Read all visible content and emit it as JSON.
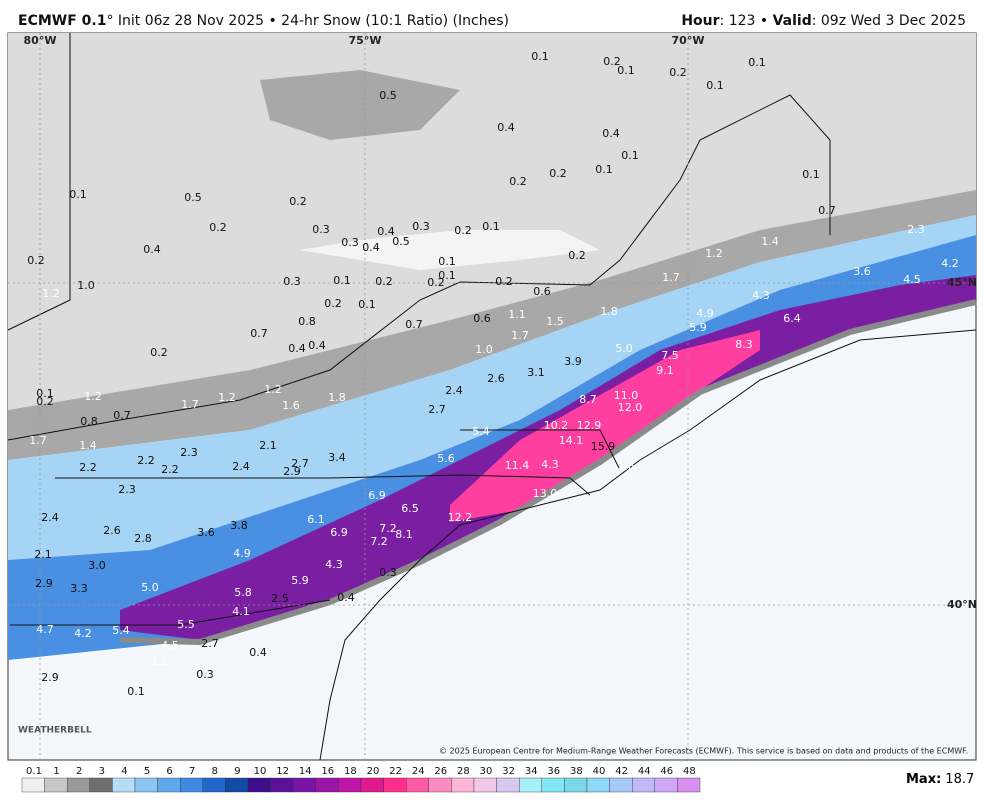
{
  "header": {
    "title_bold": "ECMWF 0.1",
    "title_rest": "° Init 06z 28 Nov 2025 • 24-hr Snow (10:1 Ratio) (Inches)",
    "hour_key": "Hour",
    "hour_val": ": 123 • ",
    "valid_key": "Valid",
    "valid_val": ": 09z Wed 3 Dec 2025"
  },
  "map": {
    "coords": [
      "80°W",
      "75°W",
      "70°W",
      "45°N",
      "40°N"
    ],
    "labels": [
      "0.1",
      "0.2",
      "0.1",
      "0.2",
      "0.1",
      "0.1",
      "0.5",
      "0.4",
      "0.4",
      "0.1",
      "0.1",
      "0.2",
      "0.2",
      "0.1",
      "0.7",
      "0.1",
      "0.5",
      "0.2",
      "0.2",
      "0.3",
      "0.3",
      "0.4",
      "0.2",
      "0.1",
      "0.3",
      "0.4",
      "0.5",
      "0.4",
      "0.2",
      "0.1",
      "0.2",
      "1.2",
      "1.4",
      "2.3",
      "1.7",
      "1.0",
      "1.2",
      "0.3",
      "0.1",
      "0.2",
      "0.2",
      "0.1",
      "0.2",
      "0.6",
      "0.2",
      "0.1",
      "1.1",
      "1.5",
      "1.8",
      "4.3",
      "3.6",
      "4.5",
      "4.2",
      "0.6",
      "0.7",
      "0.7",
      "0.8",
      "1.7",
      "4.9",
      "5.9",
      "6.4",
      "8.3",
      "0.4",
      "0.4",
      "0.2",
      "1.0",
      "5.0",
      "7.5",
      "3.9",
      "9.1",
      "2.6",
      "3.1",
      "2.4",
      "0.1",
      "0.2",
      "1.2",
      "1.2",
      "1.2",
      "1.7",
      "1.6",
      "1.8",
      "0.7",
      "11.0",
      "12.0",
      "8.7",
      "2.7",
      "0.8",
      "1.4",
      "1.7",
      "2.1",
      "10.2",
      "12.9",
      "5.4",
      "14.1",
      "15.9",
      "2.3",
      "2.2",
      "2.2",
      "2.2",
      "2.4",
      "2.7",
      "2.9",
      "3.4",
      "5.6",
      "11.4",
      "4.3",
      "2.6",
      "13.0",
      "2.3",
      "6.9",
      "6.5",
      "2.4",
      "6.1",
      "12.2",
      "2.6",
      "2.8",
      "3.6",
      "3.8",
      "6.9",
      "7.2",
      "8.1",
      "7.2",
      "2.1",
      "4.9",
      "3.0",
      "4.3",
      "0.3",
      "2.9",
      "3.3",
      "5.0",
      "5.9",
      "5.8",
      "2.5",
      "0.4",
      "4.1",
      "4.7",
      "4.2",
      "5.4",
      "5.5",
      "2.7",
      "4.5",
      "0.4",
      "3.1",
      "0.3",
      "2.9",
      "0.1"
    ],
    "logo": "WEATHERBELL",
    "copyright": "© 2025 European Centre for Medium-Range Weather Forecasts (ECMWF). This service is based on data and products of the ECMWF."
  },
  "legend": {
    "labels": [
      "0.1",
      "1",
      "2",
      "3",
      "4",
      "5",
      "6",
      "7",
      "8",
      "9",
      "10",
      "12",
      "14",
      "16",
      "18",
      "20",
      "22",
      "24",
      "26",
      "28",
      "30",
      "32",
      "34",
      "36",
      "38",
      "40",
      "42",
      "44",
      "46",
      "48"
    ],
    "colors": [
      "#f0f0f0",
      "#c8c8c8",
      "#9a9a9a",
      "#6e6e6e",
      "#b7dcf7",
      "#8cc4f2",
      "#5fa8ec",
      "#3d8ae0",
      "#2066cc",
      "#124aa8",
      "#3d0f8a",
      "#5a1199",
      "#7a14a6",
      "#9a16a8",
      "#c016a8",
      "#e0198f",
      "#ff2d8c",
      "#ff5aa5",
      "#ff8cc0",
      "#ffb5d5",
      "#f2c8e8",
      "#d8c8f0",
      "#a8f0f8",
      "#80e8f0",
      "#7ad8e8",
      "#90d8f8",
      "#a8c8f8",
      "#c0b8f8",
      "#d0a8f8",
      "#d890f0"
    ]
  },
  "max": {
    "key": "Max:",
    "value": "18.7"
  }
}
